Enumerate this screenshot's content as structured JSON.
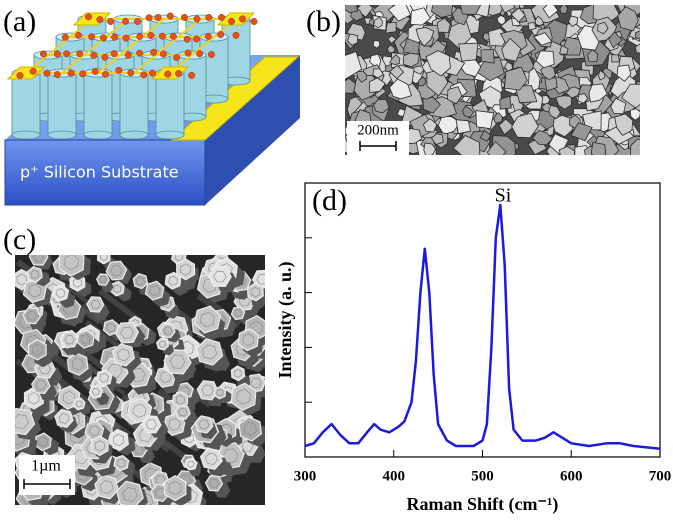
{
  "panel_labels": [
    "(a)",
    "(b)",
    "(c)",
    "(d)"
  ],
  "schematic": {
    "substrate_label": "p⁺ Silicon Substrate"
  },
  "sem_b": {
    "scale_bar": "200nm"
  },
  "sem_c": {
    "scale_bar": "1µm"
  },
  "chart_data": {
    "type": "line",
    "x_label": "Raman Shift (cm⁻¹)",
    "y_label": "Intensity (a. u.)",
    "annotation": "Si",
    "x": [
      300,
      310,
      320,
      330,
      340,
      350,
      360,
      370,
      378,
      385,
      395,
      405,
      412,
      420,
      425,
      430,
      435,
      440,
      445,
      450,
      460,
      470,
      480,
      490,
      500,
      505,
      510,
      515,
      520,
      525,
      530,
      535,
      545,
      560,
      570,
      580,
      590,
      600,
      620,
      640,
      655,
      670,
      685,
      700
    ],
    "series": [
      {
        "color": "#1a1ae0",
        "values": [
          0.04,
          0.05,
          0.09,
          0.12,
          0.08,
          0.05,
          0.05,
          0.09,
          0.12,
          0.1,
          0.09,
          0.11,
          0.13,
          0.2,
          0.35,
          0.6,
          0.76,
          0.6,
          0.3,
          0.12,
          0.06,
          0.04,
          0.04,
          0.04,
          0.06,
          0.12,
          0.4,
          0.8,
          0.92,
          0.7,
          0.25,
          0.1,
          0.06,
          0.06,
          0.07,
          0.09,
          0.07,
          0.05,
          0.04,
          0.05,
          0.05,
          0.04,
          0.035,
          0.03
        ]
      }
    ],
    "xlim": [
      300,
      700
    ],
    "xticks": [
      300,
      400,
      500,
      600,
      700
    ],
    "ylim": [
      0,
      1
    ],
    "yticks": [
      0.2,
      0.4,
      0.6,
      0.8
    ]
  }
}
